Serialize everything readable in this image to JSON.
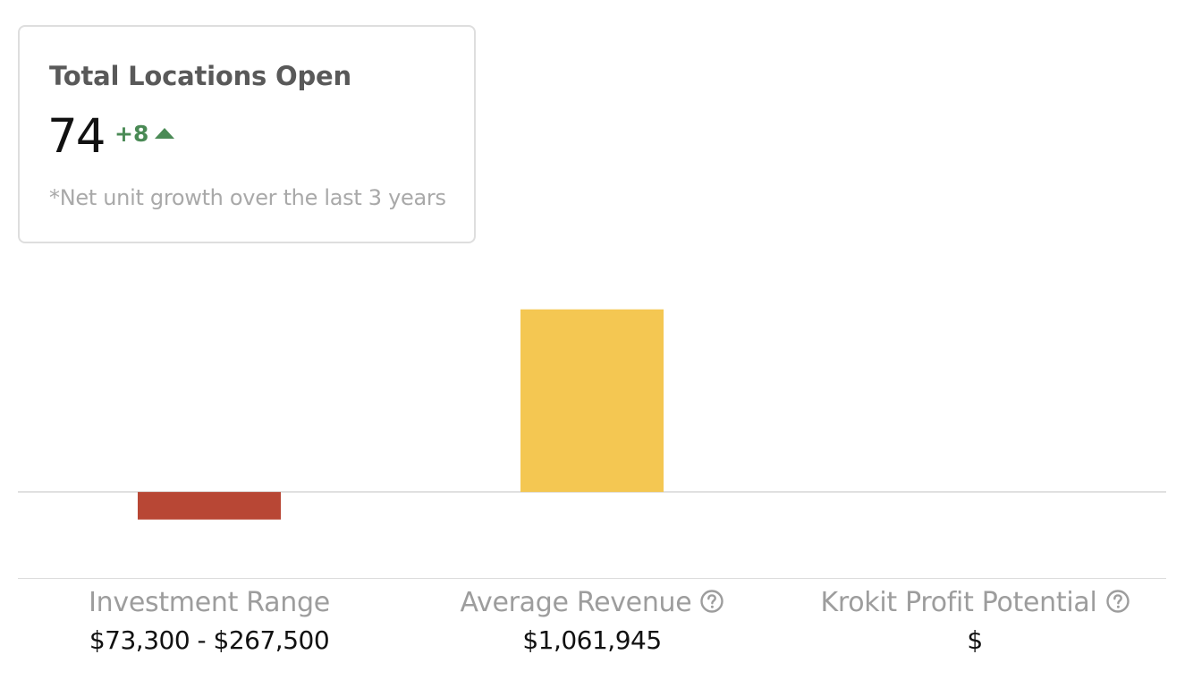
{
  "card": {
    "title": "Total Locations Open",
    "value": "74",
    "delta": "+8",
    "delta_icon": "triangle-up-icon",
    "note": "*Net unit growth over the last 3 years",
    "delta_color": "#4a8a55"
  },
  "chart_data": {
    "type": "bar",
    "categories": [
      "Investment Range",
      "Average Revenue",
      "Krokit Profit Potential"
    ],
    "values": [
      -160000,
      1061945,
      0
    ],
    "value_labels": [
      "$73,300 - $267,500",
      "$1,061,945",
      "$"
    ],
    "colors": [
      "#b84735",
      "#f4c752",
      "#ffffff"
    ],
    "info_icons": [
      false,
      true,
      true
    ],
    "ylim": [
      -500000,
      1300000
    ],
    "grid": false,
    "baseline": 0
  },
  "help_icon": "question-circle-icon"
}
